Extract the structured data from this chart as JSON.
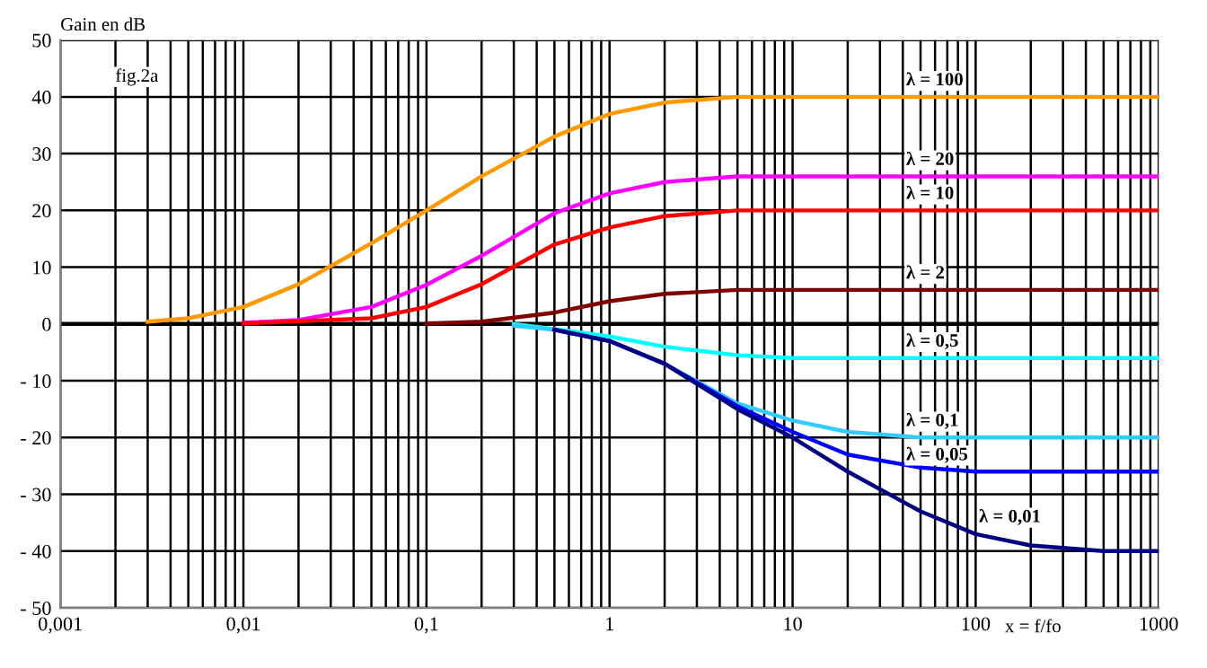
{
  "chart_data": {
    "type": "line",
    "ylabel": "Gain en dB",
    "xlabel": "x = f/fo",
    "annotations": [
      "fig.2a"
    ],
    "log": "x",
    "grid": true,
    "legend": false,
    "marker": "none",
    "line_style": "solid",
    "xlim": [
      0.001,
      1000
    ],
    "xticks": [
      {
        "value": 0.001,
        "label": "0,001"
      },
      {
        "value": 0.01,
        "label": "0,01"
      },
      {
        "value": 0.1,
        "label": "0,1"
      },
      1,
      10,
      100,
      1000
    ],
    "ylim": [
      -50,
      50
    ],
    "yticks": [
      -50,
      -40,
      -30,
      -20,
      -10,
      0,
      10,
      20,
      30,
      40,
      50
    ],
    "series": [
      {
        "name": "λ = 100",
        "color": "#ff9900",
        "x": [
          0.003,
          0.005,
          0.01,
          0.02,
          0.05,
          0.1,
          0.2,
          0.5,
          1,
          2,
          5,
          10,
          1000
        ],
        "values": [
          0.4,
          1,
          3,
          7,
          14.2,
          20,
          26,
          33,
          37,
          39,
          40,
          40,
          40
        ]
      },
      {
        "name": "λ = 20",
        "color": "#ff00ff",
        "x": [
          0.01,
          0.02,
          0.05,
          0.1,
          0.2,
          0.5,
          1,
          2,
          5,
          10,
          1000
        ],
        "values": [
          0.2,
          0.7,
          3,
          6.9,
          12,
          19.5,
          23,
          25,
          26,
          26,
          26
        ]
      },
      {
        "name": "λ = 10",
        "color": "#ff0000",
        "x": [
          0.01,
          0.05,
          0.1,
          0.2,
          0.5,
          1,
          2,
          5,
          1000
        ],
        "values": [
          0.1,
          1,
          3,
          7,
          14,
          17,
          19,
          20,
          20
        ]
      },
      {
        "name": "λ = 2",
        "color": "#800000",
        "x": [
          0.1,
          0.2,
          0.5,
          1,
          2,
          5,
          1000
        ],
        "values": [
          0.1,
          0.4,
          2,
          4,
          5.3,
          6,
          6
        ]
      },
      {
        "name": "λ = 0,5",
        "color": "#00ffff",
        "x": [
          0.3,
          0.5,
          1,
          2,
          5,
          10,
          1000
        ],
        "values": [
          0,
          -0.9,
          -2.2,
          -4,
          -5.5,
          -6,
          -6
        ]
      },
      {
        "name": "λ = 0,1",
        "color": "#33ccff",
        "x": [
          0.3,
          0.5,
          1,
          2,
          5,
          10,
          20,
          50,
          1000
        ],
        "values": [
          -0.3,
          -1,
          -3,
          -7,
          -14,
          -17,
          -19,
          -20,
          -20
        ]
      },
      {
        "name": "λ = 0,05",
        "color": "#0000ff",
        "x": [
          0.5,
          1,
          2,
          5,
          10,
          20,
          50,
          100,
          1000
        ],
        "values": [
          -1,
          -3,
          -7,
          -14.5,
          -19,
          -23,
          -25.3,
          -26,
          -26
        ]
      },
      {
        "name": "λ = 0,01",
        "color": "#000080",
        "x": [
          0.5,
          1,
          2,
          5,
          10,
          20,
          50,
          100,
          200,
          500,
          1000
        ],
        "values": [
          -1,
          -3,
          -7,
          -15,
          -20,
          -26,
          -33,
          -37,
          -39,
          -40,
          -40
        ]
      }
    ]
  }
}
